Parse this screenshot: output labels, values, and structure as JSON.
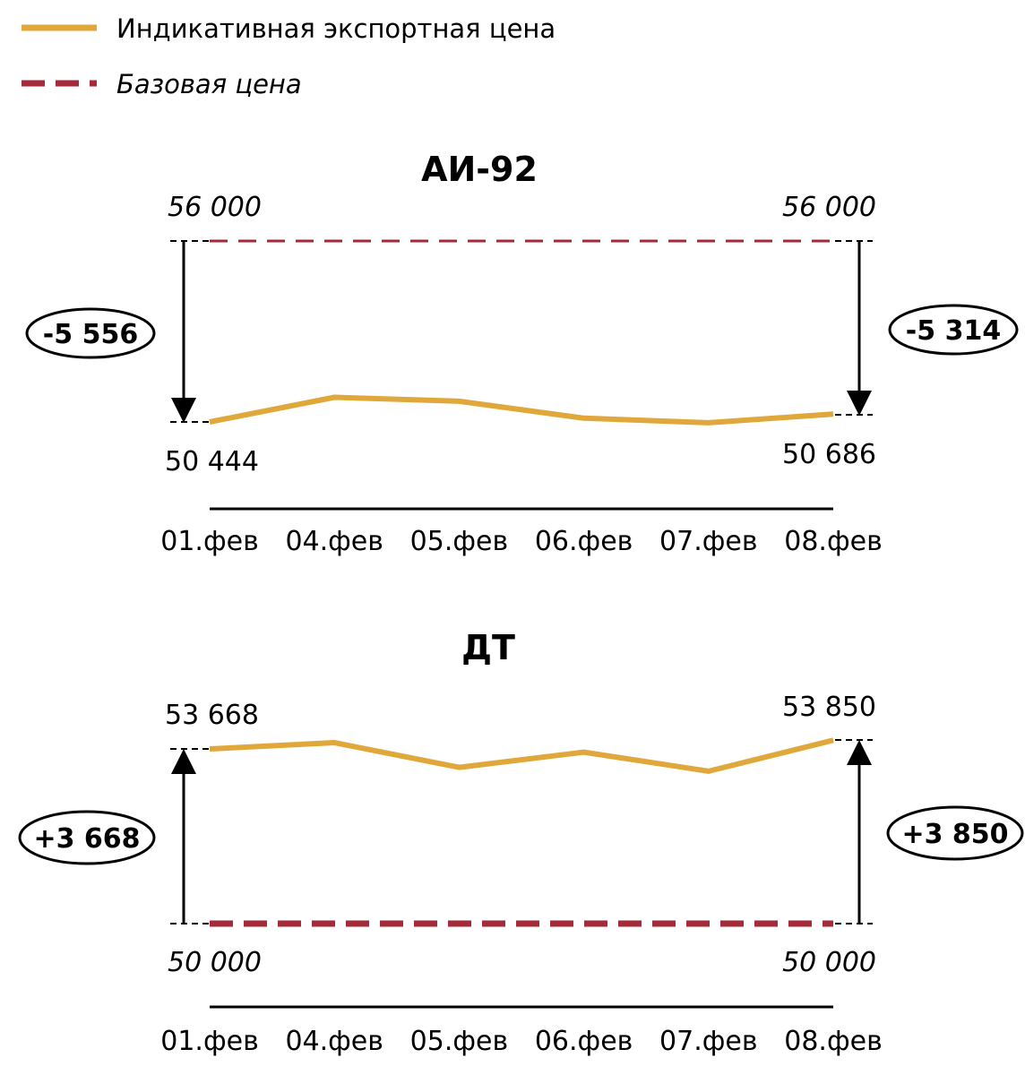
{
  "legend": {
    "items": [
      {
        "label": "Индикативная экспортная цена",
        "color": "#E0A83A",
        "style": "solid",
        "italic": false
      },
      {
        "label": "Базовая цена",
        "color": "#A52A3A",
        "style": "dashed",
        "italic": true
      }
    ]
  },
  "chart_data": [
    {
      "type": "line",
      "title": "АИ-92",
      "categories": [
        "01.фев",
        "04.фев",
        "05.фев",
        "06.фев",
        "07.фев",
        "08.фев"
      ],
      "series": [
        {
          "name": "Индикативная экспортная цена",
          "values": [
            50444,
            51200,
            51080,
            50560,
            50420,
            50686
          ],
          "color": "#E0A83A"
        },
        {
          "name": "Базовая цена",
          "values": [
            56000,
            56000,
            56000,
            56000,
            56000,
            56000
          ],
          "color": "#A52A3A",
          "dashed": true
        }
      ],
      "ylim": [
        50000,
        56000
      ],
      "labels": {
        "base_left": "56 000",
        "base_right": "56 000",
        "start_value": "50 444",
        "end_value": "50 686",
        "diff_left": "-5 556",
        "diff_right": "-5 314"
      }
    },
    {
      "type": "line",
      "title": "ДТ",
      "categories": [
        "01.фев",
        "04.фев",
        "05.фев",
        "06.фев",
        "07.фев",
        "08.фев"
      ],
      "series": [
        {
          "name": "Индикативная экспортная цена",
          "values": [
            53668,
            53800,
            53280,
            53600,
            53200,
            53850
          ],
          "color": "#E0A83A"
        },
        {
          "name": "Базовая цена",
          "values": [
            50000,
            50000,
            50000,
            50000,
            50000,
            50000
          ],
          "color": "#A52A3A",
          "dashed": true
        }
      ],
      "ylim": [
        50000,
        56000
      ],
      "labels": {
        "base_left": "50 000",
        "base_right": "50 000",
        "start_value": "53 668",
        "end_value": "53 850",
        "diff_left": "+3 668",
        "diff_right": "+3 850"
      }
    }
  ]
}
